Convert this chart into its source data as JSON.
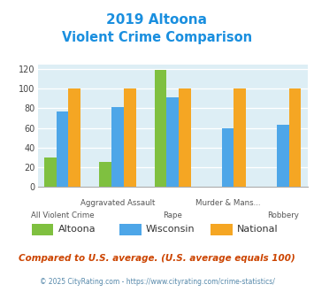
{
  "title_line1": "2019 Altoona",
  "title_line2": "Violent Crime Comparison",
  "title_color": "#1a8fdf",
  "series": {
    "Altoona": {
      "color": "#7fc040",
      "values": [
        30,
        25,
        119,
        null,
        null
      ]
    },
    "Wisconsin": {
      "color": "#4da6e8",
      "values": [
        77,
        81,
        91,
        60,
        63
      ]
    },
    "National": {
      "color": "#f5a623",
      "values": [
        100,
        100,
        100,
        100,
        100
      ]
    }
  },
  "ylim": [
    0,
    125
  ],
  "yticks": [
    0,
    20,
    40,
    60,
    80,
    100,
    120
  ],
  "plot_bg_color": "#ddeef5",
  "top_labels": [
    "",
    "Aggravated Assault",
    "",
    "Murder & Mans...",
    ""
  ],
  "bot_labels": [
    "All Violent Crime",
    "",
    "Rape",
    "",
    "Robbery"
  ],
  "footer_text": "Compared to U.S. average. (U.S. average equals 100)",
  "footer_color": "#cc4400",
  "copyright_text": "© 2025 CityRating.com - https://www.cityrating.com/crime-statistics/",
  "copyright_color": "#5588aa"
}
